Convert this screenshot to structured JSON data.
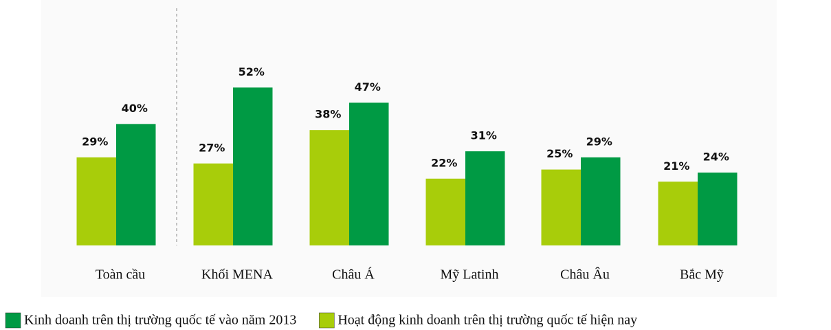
{
  "chart_data": {
    "type": "bar",
    "categories": [
      "Toàn cầu",
      "Khối MENA",
      "Châu Á",
      "Mỹ Latinh",
      "Châu Âu",
      "Bắc Mỹ"
    ],
    "series": [
      {
        "name": "Hoạt động kinh doanh trên thị trường quốc tế hiện nay",
        "color": "#a8cd0a",
        "values": [
          29,
          27,
          38,
          22,
          25,
          21
        ],
        "value_labels": [
          "29%",
          "27%",
          "38%",
          "22%",
          "25%",
          "21%"
        ]
      },
      {
        "name": "Kinh doanh trên thị trường quốc tế vào năm 2013",
        "color": "#009a44",
        "values": [
          40,
          52,
          47,
          31,
          29,
          24
        ],
        "value_labels": [
          "40%",
          "52%",
          "47%",
          "31%",
          "29%",
          "24%"
        ]
      }
    ],
    "ylim": [
      0,
      60
    ]
  }
}
